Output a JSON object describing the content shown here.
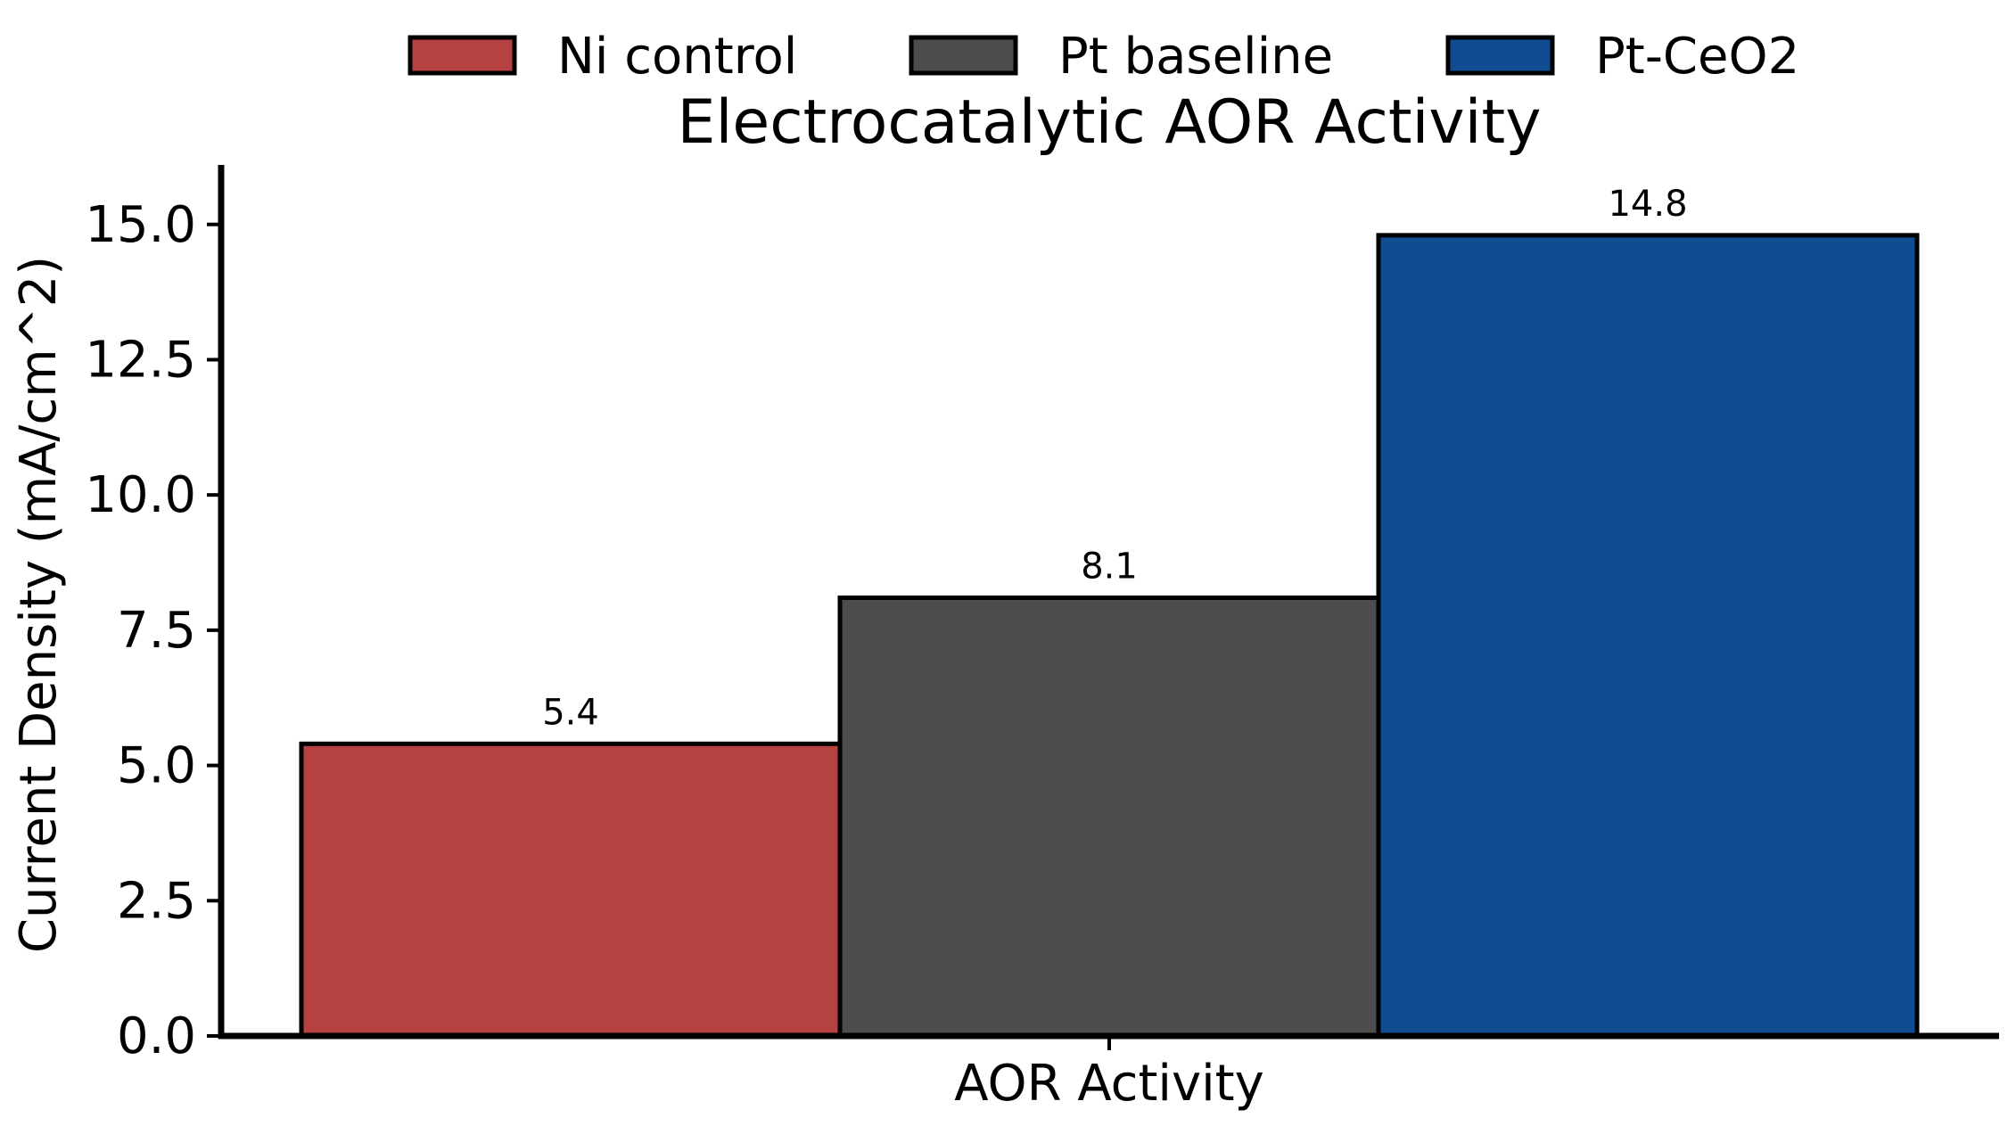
{
  "chart_data": {
    "type": "bar",
    "title": "Electrocatalytic AOR Activity",
    "xlabel": "AOR Activity",
    "ylabel": "Current Density (mA/cm^2)",
    "categories": [
      "AOR Activity"
    ],
    "ylim": [
      0,
      16.1
    ],
    "yticks": [
      "0.0",
      "2.5",
      "5.0",
      "7.5",
      "10.0",
      "12.5",
      "15.0"
    ],
    "grid": false,
    "legend_position": "top-center",
    "series": [
      {
        "name": "Ni control",
        "values": [
          5.4
        ],
        "label": "5.4",
        "color": "#b54141"
      },
      {
        "name": "Pt baseline",
        "values": [
          8.1
        ],
        "label": "8.1",
        "color": "#4d4d4d"
      },
      {
        "name": "Pt-CeO2",
        "values": [
          14.8
        ],
        "label": "14.8",
        "color": "#0f4c91"
      }
    ]
  }
}
